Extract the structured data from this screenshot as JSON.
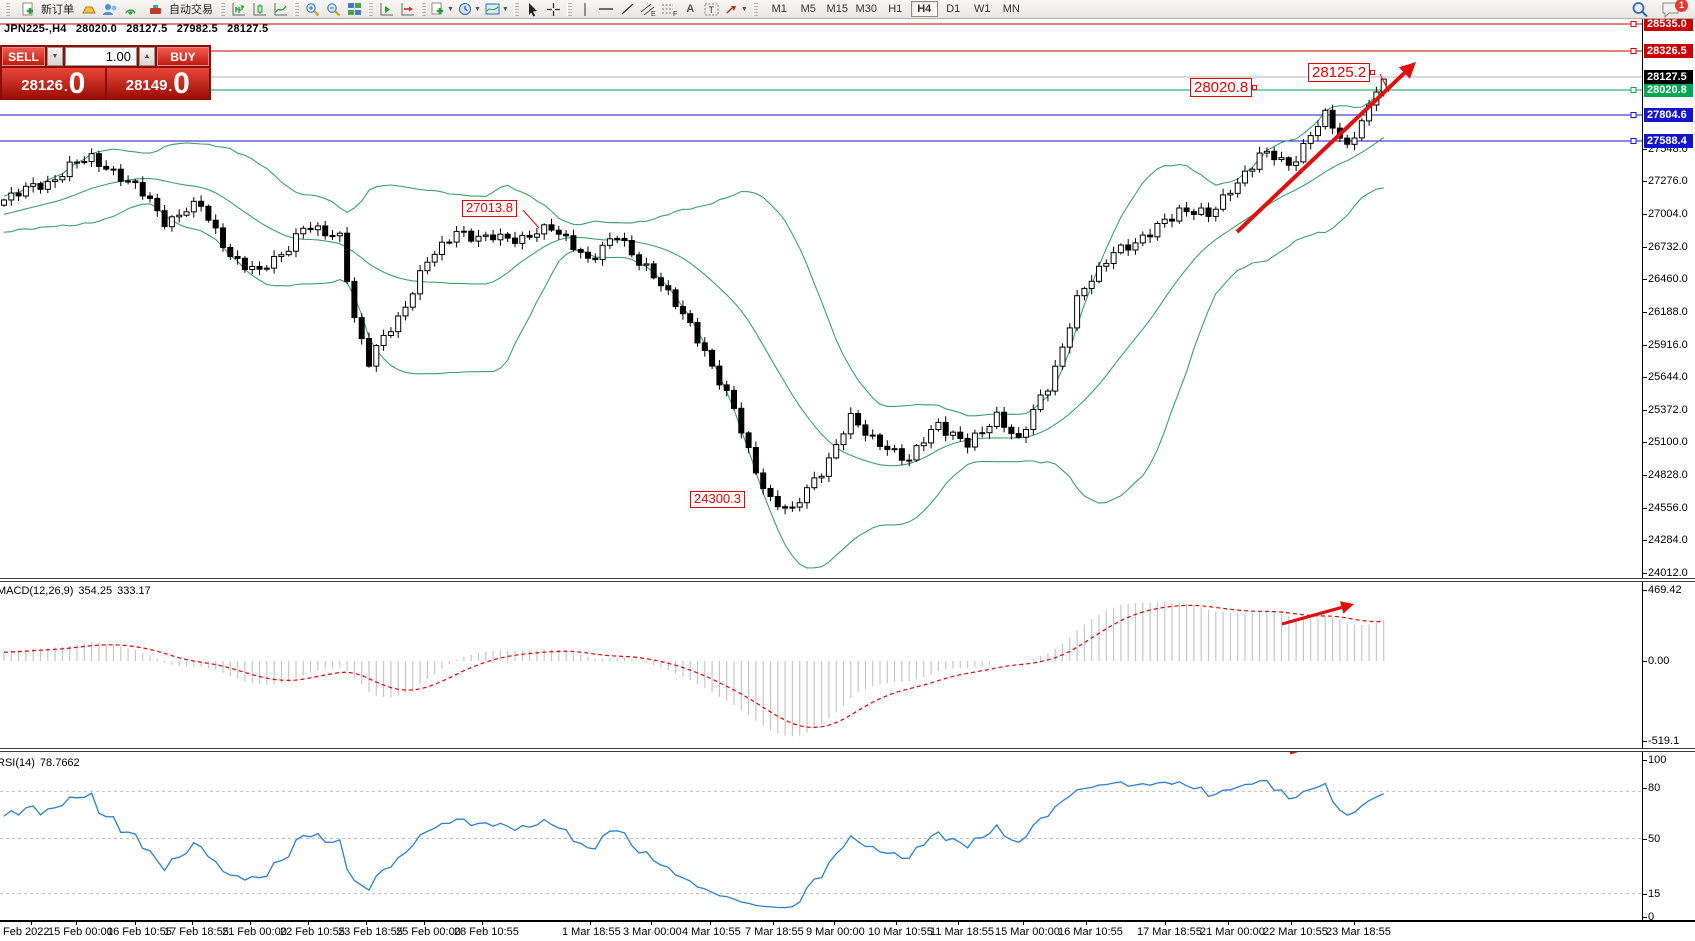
{
  "toolbar": {
    "new_order_label": "新订单",
    "autotrading_label": "自动交易",
    "timeframes": [
      "M1",
      "M5",
      "M15",
      "M30",
      "H1",
      "H4",
      "D1",
      "W1",
      "MN"
    ],
    "active_timeframe": "H4",
    "notification_badge": "1"
  },
  "chart": {
    "header": {
      "symbol_period": "JPN225-,H4",
      "open": "28020.0",
      "high": "28127.5",
      "low": "27982.5",
      "close": "28127.5"
    },
    "trade_panel": {
      "sell_label": "SELL",
      "buy_label": "BUY",
      "volume": "1.00",
      "sell_price_int": "28126",
      "sell_price_dec": "0",
      "buy_price_int": "28149",
      "buy_price_dec": "0",
      "decimal_separator": "."
    },
    "hlines": [
      {
        "label": "28535.0",
        "color": "#cc0000"
      },
      {
        "label": "28326.5",
        "color": "#cc0000"
      },
      {
        "label": "28020.8",
        "color": "#00a651"
      },
      {
        "label": "27804.6",
        "color": "#1414cc"
      },
      {
        "label": "27588.4",
        "color": "#1414cc"
      }
    ],
    "current_price_label": "28127.5",
    "price_ticks": [
      "27548.0",
      "27276.0",
      "27004.0",
      "26732.0",
      "26460.0",
      "26188.0",
      "25916.0",
      "25644.0",
      "25372.0",
      "25100.0",
      "24828.0",
      "24556.0",
      "24284.0",
      "24012.0"
    ],
    "annotations": [
      {
        "text": "28020.8"
      },
      {
        "text": "28125.2"
      },
      {
        "text": "27013.8"
      },
      {
        "text": "24300.3"
      }
    ]
  },
  "macd_panel": {
    "title": "MACD(12,26,9)",
    "main_value": "354.25",
    "signal_value": "333.17",
    "ticks": [
      "469.42",
      "0.00",
      "-519.1"
    ]
  },
  "rsi_panel": {
    "title": "RSI(14)",
    "value": "78.7662",
    "ticks": [
      "100",
      "80",
      "50",
      "15",
      "0"
    ]
  },
  "timeline": [
    "Feb 2022",
    "15 Feb 00:00",
    "16 Feb 10:55",
    "17 Feb 18:55",
    "21 Feb 00:00",
    "22 Feb 10:55",
    "23 Feb 18:55",
    "25 Feb 00:00",
    "28 Feb 10:55",
    "1 Mar 18:55",
    "3 Mar 00:00",
    "4 Mar 10:55",
    "7 Mar 18:55",
    "9 Mar 00:00",
    "10 Mar 10:55",
    "11 Mar 18:55",
    "15 Mar 00:00",
    "16 Mar 10:55",
    "17 Mar 18:55",
    "21 Mar 00:00",
    "22 Mar 10:55",
    "23 Mar 18:55"
  ],
  "chart_data": {
    "type": "candlestick",
    "symbol": "JPN225-",
    "timeframe": "H4",
    "current_bar": {
      "open": 28020.0,
      "high": 28127.5,
      "low": 27982.5,
      "close": 28127.5
    },
    "quote": {
      "bid": 28126.0,
      "ask": 28149.0
    },
    "y_axis": {
      "ticks": [
        27548.0,
        27276.0,
        27004.0,
        26732.0,
        26460.0,
        26188.0,
        25916.0,
        25644.0,
        25372.0,
        25100.0,
        24828.0,
        24556.0,
        24284.0,
        24012.0
      ]
    },
    "horizontal_lines": [
      {
        "price": 28535.0,
        "color": "#cc0000"
      },
      {
        "price": 28326.5,
        "color": "#cc0000"
      },
      {
        "price": 28020.8,
        "color": "#00a651"
      },
      {
        "price": 27804.6,
        "color": "#1414cc"
      },
      {
        "price": 27588.4,
        "color": "#1414cc"
      }
    ],
    "current_price_line": 28127.5,
    "price_annotations": [
      28020.8,
      28125.2,
      27013.8,
      24300.3
    ],
    "indicators": {
      "bollinger": {
        "period": 20,
        "deviation": 2,
        "color": "#3da06a"
      },
      "macd": {
        "fast": 12,
        "slow": 26,
        "signal": 9,
        "main_value": 354.25,
        "signal_value": 333.17,
        "scale_max": 469.42,
        "scale_min": -519.1
      },
      "rsi": {
        "period": 14,
        "value": 78.7662,
        "levels": [
          80,
          50,
          15
        ],
        "scale": [
          0,
          100
        ]
      }
    },
    "trend_arrows": [
      {
        "panel": "price",
        "direction": "up"
      },
      {
        "panel": "macd",
        "direction": "up"
      },
      {
        "panel": "rsi",
        "direction": "up"
      }
    ],
    "close_keypoints": [
      [
        -30,
        26750
      ],
      [
        0,
        27120
      ],
      [
        6,
        27280
      ],
      [
        12,
        27480
      ],
      [
        18,
        27230
      ],
      [
        22,
        26960
      ],
      [
        27,
        27070
      ],
      [
        31,
        26660
      ],
      [
        35,
        26500
      ],
      [
        41,
        26880
      ],
      [
        46,
        26820
      ],
      [
        48,
        26150
      ],
      [
        50,
        25760
      ],
      [
        54,
        26150
      ],
      [
        58,
        26600
      ],
      [
        62,
        26860
      ],
      [
        68,
        26780
      ],
      [
        75,
        26880
      ],
      [
        80,
        26640
      ],
      [
        84,
        26800
      ],
      [
        88,
        26570
      ],
      [
        92,
        26250
      ],
      [
        96,
        25880
      ],
      [
        100,
        25350
      ],
      [
        103,
        24880
      ],
      [
        105,
        24620
      ],
      [
        108,
        24520
      ],
      [
        112,
        24880
      ],
      [
        116,
        25280
      ],
      [
        120,
        25100
      ],
      [
        124,
        24940
      ],
      [
        128,
        25280
      ],
      [
        132,
        25060
      ],
      [
        136,
        25330
      ],
      [
        139,
        25120
      ],
      [
        143,
        25560
      ],
      [
        147,
        26280
      ],
      [
        152,
        26700
      ],
      [
        157,
        26820
      ],
      [
        161,
        27060
      ],
      [
        165,
        26980
      ],
      [
        172,
        27500
      ],
      [
        176,
        27420
      ],
      [
        181,
        27820
      ],
      [
        184,
        27550
      ],
      [
        186,
        27800
      ],
      [
        189,
        28127.5
      ]
    ]
  }
}
